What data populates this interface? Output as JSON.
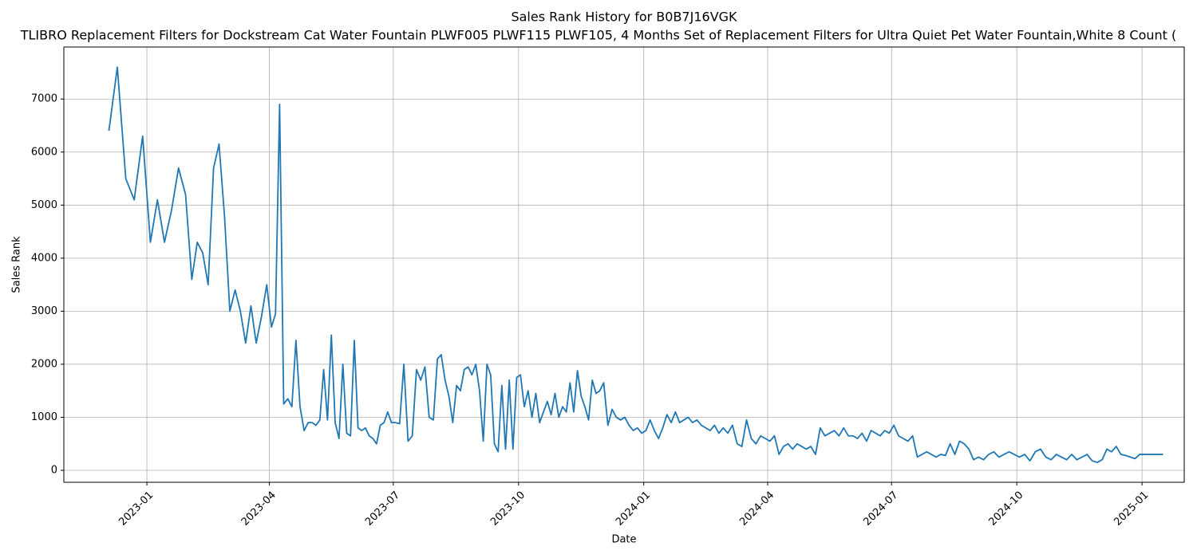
{
  "chart_data": {
    "type": "line",
    "title": "Sales Rank History for B0B7J16VGK",
    "subtitle": "TLIBRO Replacement Filters for Dockstream Cat Water Fountain PLWF005 PLWF115 PLWF105, 4 Months Set of Replacement Filters for Ultra Quiet Pet Water Fountain,White 8 Count (",
    "x_label": "Date",
    "y_label": "Sales Rank",
    "x": [
      "2022-12",
      "2022-12",
      "2022-12",
      "2022-12",
      "2022-12",
      "2023-01",
      "2023-01",
      "2023-01",
      "2023-01",
      "2023-01",
      "2023-01",
      "2023-02",
      "2023-02",
      "2023-02",
      "2023-02",
      "2023-02",
      "2023-02",
      "2023-02",
      "2023-03",
      "2023-03",
      "2023-03",
      "2023-03",
      "2023-03",
      "2023-03",
      "2023-03",
      "2023-03",
      "2023-04",
      "2023-04",
      "2023-04",
      "2023-04",
      "2023-04",
      "2023-04",
      "2023-04",
      "2023-04",
      "2023-04",
      "2023-04",
      "2023-05",
      "2023-05",
      "2023-05",
      "2023-05",
      "2023-05",
      "2023-05",
      "2023-05",
      "2023-05",
      "2023-05",
      "2023-05",
      "2023-05",
      "2023-06",
      "2023-06",
      "2023-06",
      "2023-06",
      "2023-06",
      "2023-06",
      "2023-06",
      "2023-06",
      "2023-06",
      "2023-06",
      "2023-06",
      "2023-07",
      "2023-07",
      "2023-07",
      "2023-07",
      "2023-07",
      "2023-07",
      "2023-07",
      "2023-07",
      "2023-07",
      "2023-07",
      "2023-08",
      "2023-08",
      "2023-08",
      "2023-08",
      "2023-08",
      "2023-08",
      "2023-08",
      "2023-08",
      "2023-08",
      "2023-08",
      "2023-08",
      "2023-09",
      "2023-09",
      "2023-09",
      "2023-09",
      "2023-09",
      "2023-09",
      "2023-09",
      "2023-09",
      "2023-09",
      "2023-09",
      "2023-09",
      "2023-10",
      "2023-10",
      "2023-10",
      "2023-10",
      "2023-10",
      "2023-10",
      "2023-10",
      "2023-10",
      "2023-10",
      "2023-10",
      "2023-10",
      "2023-11",
      "2023-11",
      "2023-11",
      "2023-11",
      "2023-11",
      "2023-11",
      "2023-11",
      "2023-11",
      "2023-11",
      "2023-11",
      "2023-11",
      "2023-12",
      "2023-12",
      "2023-12",
      "2023-12",
      "2023-12",
      "2023-12",
      "2023-12",
      "2023-12",
      "2023-12",
      "2023-12",
      "2024-01",
      "2024-01",
      "2024-01",
      "2024-01",
      "2024-01",
      "2024-01",
      "2024-01",
      "2024-01",
      "2024-01",
      "2024-01",
      "2024-02",
      "2024-02",
      "2024-02",
      "2024-02",
      "2024-02",
      "2024-02",
      "2024-02",
      "2024-02",
      "2024-02",
      "2024-03",
      "2024-03",
      "2024-03",
      "2024-03",
      "2024-03",
      "2024-03",
      "2024-03",
      "2024-03",
      "2024-03",
      "2024-04",
      "2024-04",
      "2024-04",
      "2024-04",
      "2024-04",
      "2024-04",
      "2024-04",
      "2024-04",
      "2024-04",
      "2024-05",
      "2024-05",
      "2024-05",
      "2024-05",
      "2024-05",
      "2024-05",
      "2024-05",
      "2024-05",
      "2024-05",
      "2024-06",
      "2024-06",
      "2024-06",
      "2024-06",
      "2024-06",
      "2024-06",
      "2024-06",
      "2024-06",
      "2024-06",
      "2024-07",
      "2024-07",
      "2024-07",
      "2024-07",
      "2024-07",
      "2024-07",
      "2024-07",
      "2024-07",
      "2024-07",
      "2024-08",
      "2024-08",
      "2024-08",
      "2024-08",
      "2024-08",
      "2024-08",
      "2024-08",
      "2024-08",
      "2024-08",
      "2024-09",
      "2024-09",
      "2024-09",
      "2024-09",
      "2024-09",
      "2024-09",
      "2024-09",
      "2024-09",
      "2024-10",
      "2024-10",
      "2024-10",
      "2024-10",
      "2024-10",
      "2024-10",
      "2024-10",
      "2024-10",
      "2024-11",
      "2024-11",
      "2024-11",
      "2024-11",
      "2024-11",
      "2024-11",
      "2024-11",
      "2024-11",
      "2024-12",
      "2024-12",
      "2024-12",
      "2024-12",
      "2024-12",
      "2024-12",
      "2024-12",
      "2024-12",
      "2024-12",
      "2025-01"
    ],
    "series": [
      {
        "name": "Sales Rank",
        "color": "#1f77b4",
        "values": [
          6400,
          7600,
          5500,
          5100,
          6300,
          4300,
          5100,
          4300,
          4900,
          5700,
          5200,
          3600,
          4300,
          4100,
          3500,
          5700,
          6150,
          4800,
          3000,
          3400,
          3000,
          2400,
          3100,
          2400,
          2900,
          3500,
          2700,
          2950,
          6900,
          1250,
          1350,
          1200,
          2450,
          1200,
          750,
          900,
          900,
          850,
          950,
          1900,
          950,
          2550,
          900,
          600,
          2000,
          700,
          650,
          2450,
          800,
          750,
          800,
          650,
          600,
          500,
          850,
          900,
          1100,
          900,
          900,
          880,
          2000,
          550,
          650,
          1900,
          1700,
          1950,
          1000,
          950,
          2100,
          2180,
          1700,
          1400,
          900,
          1600,
          1500,
          1900,
          1950,
          1800,
          2000,
          1500,
          550,
          2000,
          1800,
          500,
          350,
          1600,
          400,
          1700,
          400,
          1750,
          1800,
          1200,
          1500,
          1000,
          1450,
          900,
          1100,
          1300,
          1050,
          1450,
          1000,
          1200,
          1100,
          1650,
          1100,
          1880,
          1400,
          1200,
          950,
          1700,
          1450,
          1500,
          1650,
          850,
          1150,
          1000,
          950,
          1000,
          850,
          750,
          800,
          700,
          750,
          950,
          750,
          600,
          800,
          1050,
          900,
          1100,
          900,
          950,
          1000,
          900,
          950,
          850,
          800,
          750,
          850,
          700,
          800,
          700,
          850,
          500,
          450,
          950,
          600,
          500,
          650,
          600,
          550,
          650,
          300,
          450,
          500,
          400,
          500,
          450,
          400,
          450,
          300,
          800,
          650,
          700,
          750,
          650,
          800,
          650,
          650,
          600,
          700,
          550,
          750,
          700,
          650,
          750,
          700,
          850,
          650,
          600,
          550,
          650,
          250,
          300,
          350,
          300,
          250,
          300,
          280,
          500,
          300,
          550,
          500,
          400,
          200,
          250,
          200,
          300,
          350,
          250,
          300,
          350,
          300,
          250,
          300,
          180,
          350,
          400,
          250,
          200,
          300,
          250,
          200,
          300,
          200,
          250,
          300,
          180,
          150,
          200,
          400,
          350,
          450,
          300,
          280,
          250,
          220,
          300,
          300
        ]
      }
    ],
    "xlim": [
      "2022-11",
      "2025-02"
    ],
    "xticks": [
      "2023-01",
      "2023-04",
      "2023-07",
      "2023-10",
      "2024-01",
      "2024-04",
      "2024-07",
      "2024-10",
      "2025-01"
    ],
    "ylim": [
      -225,
      7980
    ],
    "yticks": [
      0,
      1000,
      2000,
      3000,
      4000,
      5000,
      6000,
      7000
    ],
    "grid": true
  }
}
